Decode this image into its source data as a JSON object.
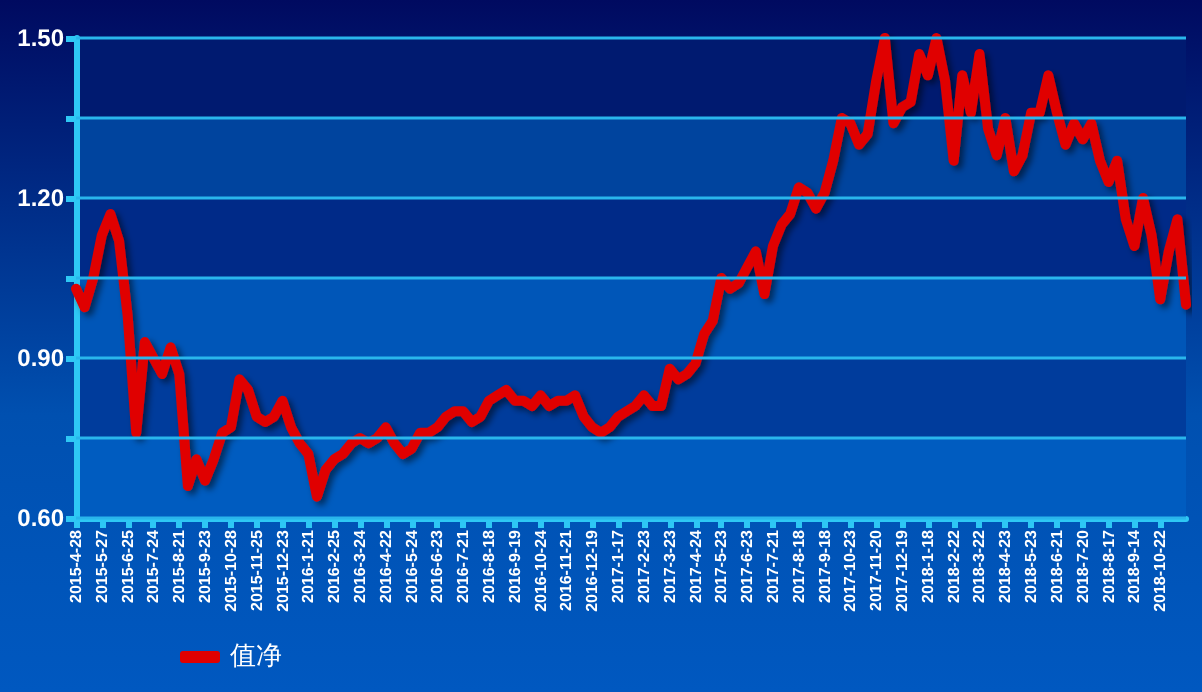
{
  "chart_data": {
    "type": "line",
    "categories": [
      "2015-4-28",
      null,
      null,
      "2015-5-27",
      null,
      null,
      "2015-6-25",
      null,
      null,
      "2015-7-24",
      null,
      null,
      "2015-8-21",
      null,
      null,
      "2015-9-23",
      null,
      null,
      "2015-10-28",
      null,
      null,
      "2015-11-25",
      null,
      null,
      "2015-12-23",
      null,
      null,
      "2016-1-21",
      null,
      null,
      "2016-2-25",
      null,
      null,
      "2016-3-24",
      null,
      null,
      "2016-4-22",
      null,
      null,
      "2016-5-24",
      null,
      null,
      "2016-6-23",
      null,
      null,
      "2016-7-21",
      null,
      null,
      "2016-8-18",
      null,
      null,
      "2016-9-19",
      null,
      null,
      "2016-10-24",
      null,
      null,
      "2016-11-21",
      null,
      null,
      "2016-12-19",
      null,
      null,
      "2017-1-17",
      null,
      null,
      "2017-2-23",
      null,
      null,
      "2017-3-23",
      null,
      null,
      "2017-4-24",
      null,
      null,
      "2017-5-23",
      null,
      null,
      "2017-6-23",
      null,
      null,
      "2017-7-21",
      null,
      null,
      "2017-8-18",
      null,
      null,
      "2017-9-18",
      null,
      null,
      "2017-10-23",
      null,
      null,
      "2017-11-20",
      null,
      null,
      "2017-12-19",
      null,
      null,
      "2018-1-18",
      null,
      null,
      "2018-2-22",
      null,
      null,
      "2018-3-22",
      null,
      null,
      "2018-4-23",
      null,
      null,
      "2018-5-23",
      null,
      null,
      "2018-6-21",
      null,
      null,
      "2018-7-20",
      null,
      null,
      "2018-8-17",
      null,
      null,
      "2018-9-14",
      null,
      null,
      "2018-10-22",
      null,
      null,
      null
    ],
    "series": [
      {
        "name": "值净",
        "color": "#e00000",
        "values": [
          1.03,
          0.995,
          1.05,
          1.13,
          1.17,
          1.12,
          0.98,
          0.76,
          0.93,
          0.9,
          0.87,
          0.92,
          0.87,
          0.66,
          0.71,
          0.67,
          0.71,
          0.76,
          0.77,
          0.86,
          0.84,
          0.79,
          0.78,
          0.79,
          0.82,
          0.77,
          0.74,
          0.72,
          0.64,
          0.69,
          0.71,
          0.72,
          0.74,
          0.75,
          0.74,
          0.75,
          0.77,
          0.74,
          0.72,
          0.73,
          0.76,
          0.76,
          0.77,
          0.79,
          0.8,
          0.8,
          0.78,
          0.79,
          0.82,
          0.83,
          0.84,
          0.82,
          0.82,
          0.81,
          0.83,
          0.81,
          0.82,
          0.82,
          0.83,
          0.79,
          0.77,
          0.76,
          0.77,
          0.79,
          0.8,
          0.81,
          0.83,
          0.81,
          0.81,
          0.88,
          0.86,
          0.87,
          0.89,
          0.945,
          0.97,
          1.05,
          1.03,
          1.04,
          1.07,
          1.1,
          1.02,
          1.11,
          1.15,
          1.17,
          1.22,
          1.21,
          1.18,
          1.21,
          1.27,
          1.35,
          1.34,
          1.3,
          1.32,
          1.42,
          1.5,
          1.34,
          1.37,
          1.38,
          1.47,
          1.43,
          1.5,
          1.42,
          1.27,
          1.43,
          1.36,
          1.47,
          1.33,
          1.28,
          1.35,
          1.25,
          1.28,
          1.36,
          1.36,
          1.43,
          1.36,
          1.3,
          1.34,
          1.31,
          1.34,
          1.27,
          1.23,
          1.27,
          1.16,
          1.11,
          1.2,
          1.13,
          1.01,
          1.1,
          1.16,
          1.0
        ]
      }
    ],
    "ylim": [
      0.6,
      1.5
    ],
    "yticks": [
      {
        "value": 0.6,
        "label": "0.60"
      },
      {
        "value": 0.75,
        "label": null
      },
      {
        "value": 0.9,
        "label": "0.90"
      },
      {
        "value": 1.05,
        "label": null
      },
      {
        "value": 1.2,
        "label": "1.20"
      },
      {
        "value": 1.35,
        "label": null
      },
      {
        "value": 1.5,
        "label": "1.50"
      }
    ],
    "bands": [
      {
        "axis": "y",
        "from": 0.6,
        "to": 0.75,
        "color": "#005cc0"
      },
      {
        "axis": "y",
        "from": 0.75,
        "to": 0.9,
        "color": "#003c9c"
      },
      {
        "axis": "y",
        "from": 0.9,
        "to": 1.05,
        "color": "#0056b8"
      },
      {
        "axis": "y",
        "from": 1.05,
        "to": 1.2,
        "color": "#002a88"
      },
      {
        "axis": "y",
        "from": 1.2,
        "to": 1.35,
        "color": "#00449e"
      },
      {
        "axis": "y",
        "from": 1.35,
        "to": 1.5,
        "color": "#001a70"
      }
    ],
    "grid": "y",
    "legend": "bottom left",
    "marker": "none",
    "line_style": "solid"
  }
}
